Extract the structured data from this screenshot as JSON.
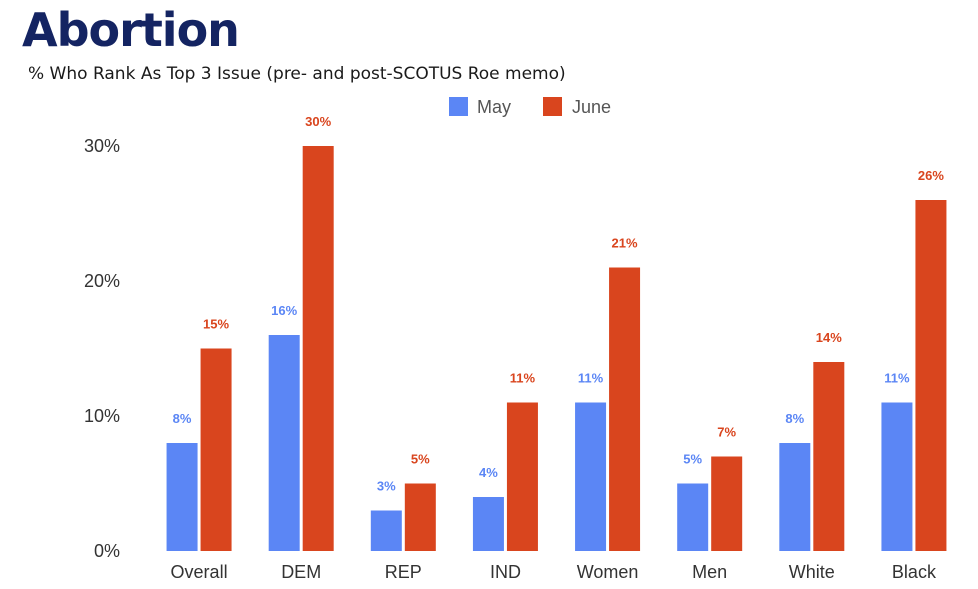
{
  "title": "Abortion",
  "subtitle": "% Who Rank As Top 3 Issue (pre- and post-SCOTUS Roe memo)",
  "colors": {
    "may": "#5b86f5",
    "june": "#d9451e"
  },
  "chart_data": {
    "type": "bar",
    "title": "Abortion",
    "subtitle": "% Who Rank As Top 3 Issue (pre- and post-SCOTUS Roe memo)",
    "categories": [
      "Overall",
      "DEM",
      "REP",
      "IND",
      "Women",
      "Men",
      "White",
      "Black"
    ],
    "series": [
      {
        "name": "May",
        "values": [
          8,
          16,
          3,
          4,
          11,
          5,
          8,
          11
        ],
        "labels": [
          "8%",
          "16%",
          "3%",
          "4%",
          "11%",
          "5%",
          "8%",
          "11%"
        ],
        "color": "#5b86f5"
      },
      {
        "name": "June",
        "values": [
          15,
          30,
          5,
          11,
          21,
          7,
          14,
          26
        ],
        "labels": [
          "15%",
          "30%",
          "5%",
          "11%",
          "21%",
          "7%",
          "14%",
          "26%"
        ],
        "color": "#d9451e"
      }
    ],
    "yticks": [
      "0%",
      "10%",
      "20%",
      "30%"
    ],
    "ytick_values": [
      0,
      10,
      20,
      30
    ],
    "ylim": [
      0,
      30
    ],
    "xlabel": "",
    "ylabel": "",
    "legend_position": "top",
    "grid": false
  }
}
